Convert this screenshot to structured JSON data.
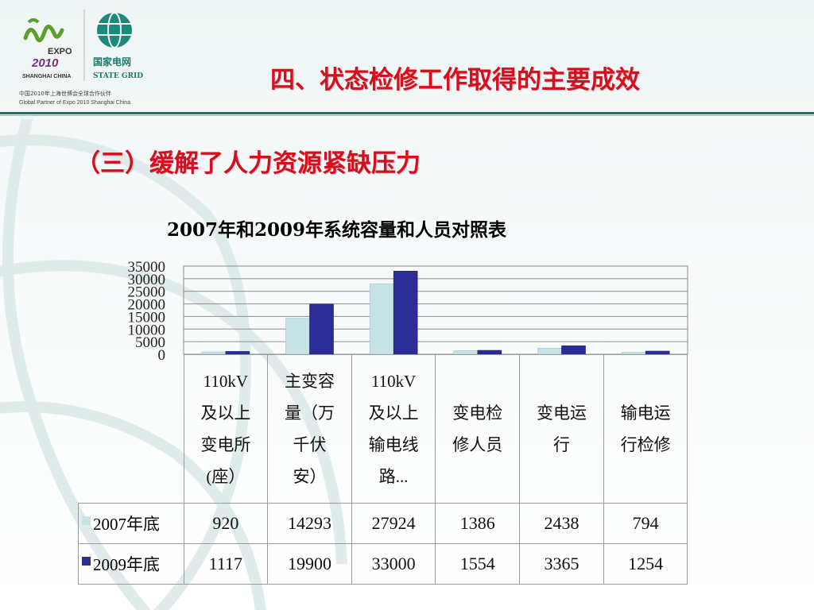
{
  "header": {
    "title": "四、状态检修工作取得的主要成效",
    "expo_text": "EXPO",
    "expo_year": "2010",
    "expo_city": "SHANGHAI CHINA",
    "sg_cn": "国家电网",
    "sg_en": "STATE GRID",
    "partner_cn": "中国2010年上海世博会全球合作伙伴",
    "partner_en": "Global Partner of Expo 2010 Shanghai China"
  },
  "subtitle": "（三）缓解了人力资源紧缺压力",
  "colors": {
    "title_red": "#d80d1d",
    "series_2007": "#c6e4e6",
    "series_2009": "#2b2c96",
    "header_line": "#2d6e64"
  },
  "chart_data": {
    "type": "bar",
    "title": "2007年和2009年系统容量和人员对照表",
    "categories": [
      [
        "110kV",
        "及以上",
        "变电所",
        "(座）"
      ],
      [
        "主变容",
        "量（万",
        "千伏",
        "安）"
      ],
      [
        "110kV",
        "及以上",
        "输电线",
        "路..."
      ],
      [
        "变电检",
        "修人员"
      ],
      [
        "变电运",
        "行"
      ],
      [
        "输电运",
        "行检修"
      ]
    ],
    "series": [
      {
        "name": "2007年底",
        "values": [
          920,
          14293,
          27924,
          1386,
          2438,
          794
        ]
      },
      {
        "name": "2009年底",
        "values": [
          1117,
          19900,
          33000,
          1554,
          3365,
          1254
        ]
      }
    ],
    "yticks": [
      "35000",
      "30000",
      "25000",
      "20000",
      "15000",
      "10000",
      "5000",
      "0"
    ],
    "ylim": [
      0,
      35000
    ],
    "grid": true,
    "legend": "data-table"
  }
}
